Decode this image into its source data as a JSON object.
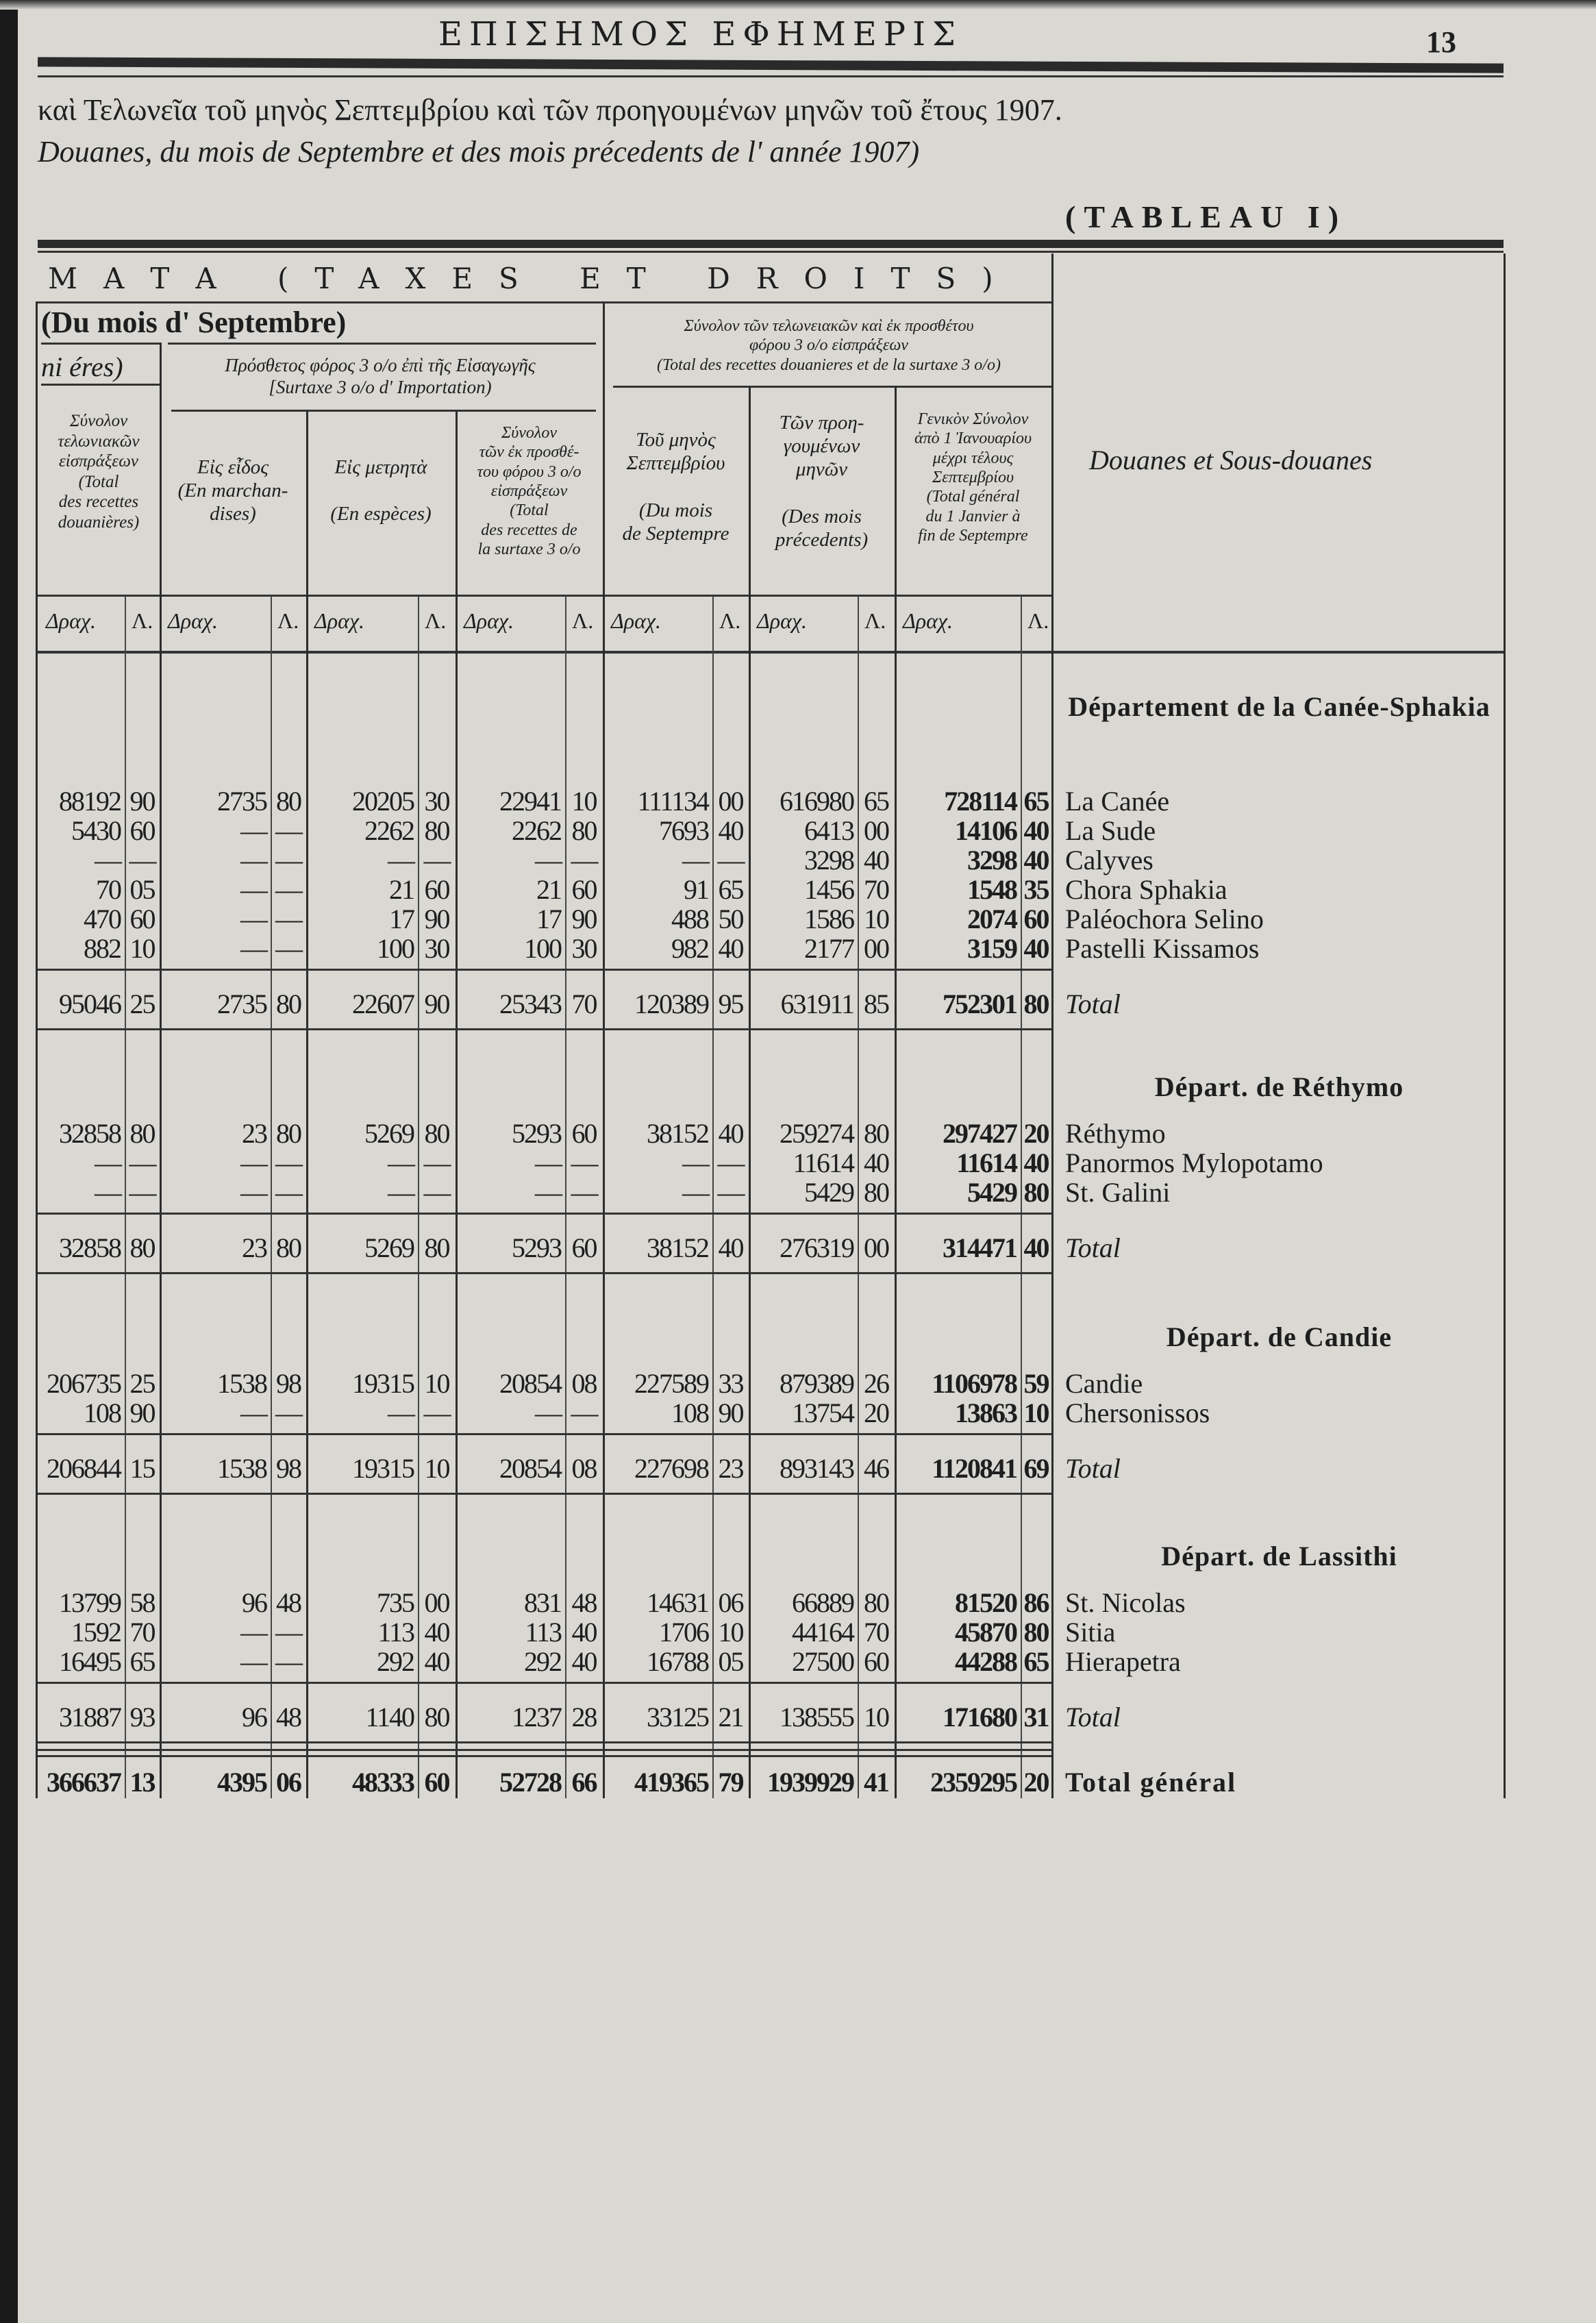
{
  "page": {
    "journal_title": "ΕΠΙΣΗΜΟΣ ΕΦΗΜΕΡΙΣ",
    "page_number": "13",
    "subtitle_greek": "καὶ Τελωνεῖα τοῦ μηνὸς Σεπτεμβρίου καὶ τῶν προηγουμένων μηνῶν τοῦ ἔτους 1907.",
    "subtitle_french": "Douanes, du mois  de Septembre et  des mois précedents de l' année 1907)",
    "tableau": "(TABLEAU I)",
    "section_banner": "ΜΑΤΑ   (TAXES ET DROITS)"
  },
  "headers": {
    "month_group": "(Du  mois d' Septembre)",
    "left_fragment": "ni éres)",
    "col0": "Σύνολον\nτελωνιακῶν\nεἰσπράξεων\n(Total\ndes recettes\ndouanières)",
    "surtax_group": "Πρόσθετος φόρος 3 ο/ο ἐπὶ τῆς Εἰσαγωγῆς\n[Surtaxe 3 o/o d' Importation)",
    "col1": "Εἰς εἶδος\n(En marchan-\ndises)",
    "col2": "Εἰς μετρητὰ\n\n(En espèces)",
    "col3": "Σύνολον\nτῶν ἐκ προσθέ-\nτου φόρου 3 ο/ο\nεἰσπράξεων\n(Total\ndes recettes de\nla surtaxe 3 o/o",
    "total_group": "Σύνολον τῶν τελωνειακῶν καὶ ἐκ προσθέτου\nφόρου 3 ο/ο εἰσπράξεων\n(Total des recettes douanieres et de la surtaxe 3 o/o)",
    "col4": "Τοῦ μηνὸς\nΣεπτεμβρίου\n\n(Du mois\nde Septempre",
    "col5": "Τῶν προη-\nγουμένων\nμηνῶν\n\n(Des mois\nprécedents)",
    "col6": "Γενικὸν Σύνολον\nἀπὸ 1 Ἰανουαρίου\nμέχρι τέλους\nΣεπτεμβρίου\n(Total général\ndu 1 Janvier à\nfin de Septempre",
    "right_col": "Douanes et Sous-douanes",
    "unit_drachma": "Δραχ.",
    "unit_lepta": "Λ."
  },
  "sections": [
    {
      "title": "Département\nde la Canée-Sphakia",
      "rows": [
        {
          "name": "La Canée",
          "v": [
            [
              "88192",
              "90"
            ],
            [
              "2735",
              "80"
            ],
            [
              "20205",
              "30"
            ],
            [
              "22941",
              "10"
            ],
            [
              "111134",
              "00"
            ],
            [
              "616980",
              "65"
            ],
            [
              "728114",
              "65"
            ]
          ]
        },
        {
          "name": "La Sude",
          "v": [
            [
              "5430",
              "60"
            ],
            [
              "—",
              "—"
            ],
            [
              "2262",
              "80"
            ],
            [
              "2262",
              "80"
            ],
            [
              "7693",
              "40"
            ],
            [
              "6413",
              "00"
            ],
            [
              "14106",
              "40"
            ]
          ]
        },
        {
          "name": "Calyves",
          "v": [
            [
              "—",
              "—"
            ],
            [
              "—",
              "—"
            ],
            [
              "—",
              "—"
            ],
            [
              "—",
              "—"
            ],
            [
              "—",
              "—"
            ],
            [
              "3298",
              "40"
            ],
            [
              "3298",
              "40"
            ]
          ]
        },
        {
          "name": "Chora Sphakia",
          "v": [
            [
              "70",
              "05"
            ],
            [
              "—",
              "—"
            ],
            [
              "21",
              "60"
            ],
            [
              "21",
              "60"
            ],
            [
              "91",
              "65"
            ],
            [
              "1456",
              "70"
            ],
            [
              "1548",
              "35"
            ]
          ]
        },
        {
          "name": "Paléochora Selino",
          "v": [
            [
              "470",
              "60"
            ],
            [
              "—",
              "—"
            ],
            [
              "17",
              "90"
            ],
            [
              "17",
              "90"
            ],
            [
              "488",
              "50"
            ],
            [
              "1586",
              "10"
            ],
            [
              "2074",
              "60"
            ]
          ]
        },
        {
          "name": "Pastelli Kissamos",
          "v": [
            [
              "882",
              "10"
            ],
            [
              "—",
              "—"
            ],
            [
              "100",
              "30"
            ],
            [
              "100",
              "30"
            ],
            [
              "982",
              "40"
            ],
            [
              "2177",
              "00"
            ],
            [
              "3159",
              "40"
            ]
          ]
        }
      ],
      "total": {
        "name": "Total",
        "v": [
          [
            "95046",
            "25"
          ],
          [
            "2735",
            "80"
          ],
          [
            "22607",
            "90"
          ],
          [
            "25343",
            "70"
          ],
          [
            "120389",
            "95"
          ],
          [
            "631911",
            "85"
          ],
          [
            "752301",
            "80"
          ]
        ]
      }
    },
    {
      "title": "Départ. de Réthymo",
      "rows": [
        {
          "name": "Réthymo",
          "v": [
            [
              "32858",
              "80"
            ],
            [
              "23",
              "80"
            ],
            [
              "5269",
              "80"
            ],
            [
              "5293",
              "60"
            ],
            [
              "38152",
              "40"
            ],
            [
              "259274",
              "80"
            ],
            [
              "297427",
              "20"
            ]
          ]
        },
        {
          "name": "Panormos Mylopotamo",
          "v": [
            [
              "—",
              "—"
            ],
            [
              "—",
              "—"
            ],
            [
              "—",
              "—"
            ],
            [
              "—",
              "—"
            ],
            [
              "—",
              "—"
            ],
            [
              "11614",
              "40"
            ],
            [
              "11614",
              "40"
            ]
          ]
        },
        {
          "name": "St. Galini",
          "v": [
            [
              "—",
              "—"
            ],
            [
              "—",
              "—"
            ],
            [
              "—",
              "—"
            ],
            [
              "—",
              "—"
            ],
            [
              "—",
              "—"
            ],
            [
              "5429",
              "80"
            ],
            [
              "5429",
              "80"
            ]
          ]
        }
      ],
      "total": {
        "name": "Total",
        "v": [
          [
            "32858",
            "80"
          ],
          [
            "23",
            "80"
          ],
          [
            "5269",
            "80"
          ],
          [
            "5293",
            "60"
          ],
          [
            "38152",
            "40"
          ],
          [
            "276319",
            "00"
          ],
          [
            "314471",
            "40"
          ]
        ]
      }
    },
    {
      "title": "Départ. de Candie",
      "rows": [
        {
          "name": "Candie",
          "v": [
            [
              "206735",
              "25"
            ],
            [
              "1538",
              "98"
            ],
            [
              "19315",
              "10"
            ],
            [
              "20854",
              "08"
            ],
            [
              "227589",
              "33"
            ],
            [
              "879389",
              "26"
            ],
            [
              "1106978",
              "59"
            ]
          ]
        },
        {
          "name": "Chersonissos",
          "v": [
            [
              "108",
              "90"
            ],
            [
              "—",
              "—"
            ],
            [
              "—",
              "—"
            ],
            [
              "—",
              "—"
            ],
            [
              "108",
              "90"
            ],
            [
              "13754",
              "20"
            ],
            [
              "13863",
              "10"
            ]
          ]
        }
      ],
      "total": {
        "name": "Total",
        "v": [
          [
            "206844",
            "15"
          ],
          [
            "1538",
            "98"
          ],
          [
            "19315",
            "10"
          ],
          [
            "20854",
            "08"
          ],
          [
            "227698",
            "23"
          ],
          [
            "893143",
            "46"
          ],
          [
            "1120841",
            "69"
          ]
        ]
      }
    },
    {
      "title": "Départ. de Lassithi",
      "rows": [
        {
          "name": "St. Nicolas",
          "v": [
            [
              "13799",
              "58"
            ],
            [
              "96",
              "48"
            ],
            [
              "735",
              "00"
            ],
            [
              "831",
              "48"
            ],
            [
              "14631",
              "06"
            ],
            [
              "66889",
              "80"
            ],
            [
              "81520",
              "86"
            ]
          ]
        },
        {
          "name": "Sitia",
          "v": [
            [
              "1592",
              "70"
            ],
            [
              "—",
              "—"
            ],
            [
              "113",
              "40"
            ],
            [
              "113",
              "40"
            ],
            [
              "1706",
              "10"
            ],
            [
              "44164",
              "70"
            ],
            [
              "45870",
              "80"
            ]
          ]
        },
        {
          "name": "Hierapetra",
          "v": [
            [
              "16495",
              "65"
            ],
            [
              "—",
              "—"
            ],
            [
              "292",
              "40"
            ],
            [
              "292",
              "40"
            ],
            [
              "16788",
              "05"
            ],
            [
              "27500",
              "60"
            ],
            [
              "44288",
              "65"
            ]
          ]
        }
      ],
      "total": {
        "name": "Total",
        "v": [
          [
            "31887",
            "93"
          ],
          [
            "96",
            "48"
          ],
          [
            "1140",
            "80"
          ],
          [
            "1237",
            "28"
          ],
          [
            "33125",
            "21"
          ],
          [
            "138555",
            "10"
          ],
          [
            "171680",
            "31"
          ]
        ]
      }
    }
  ],
  "grand_total": {
    "name": "Total général",
    "v": [
      [
        "366637",
        "13"
      ],
      [
        "4395",
        "06"
      ],
      [
        "48333",
        "60"
      ],
      [
        "52728",
        "66"
      ],
      [
        "419365",
        "79"
      ],
      [
        "1939929",
        "41"
      ],
      [
        "2359295",
        "20"
      ]
    ]
  }
}
